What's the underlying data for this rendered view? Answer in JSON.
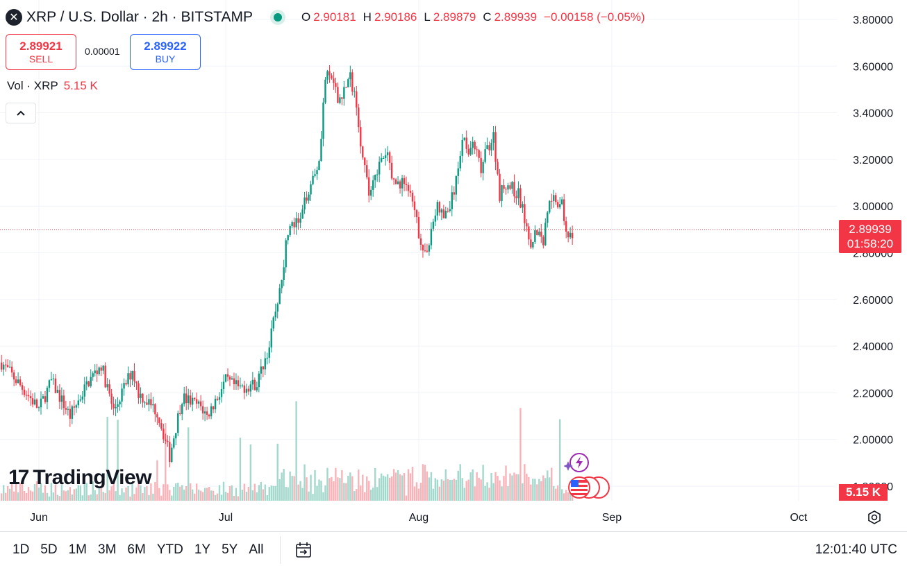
{
  "header": {
    "title": "XRP / U.S. Dollar · 2h · BITSTAMP",
    "ohlc": [
      {
        "label": "O",
        "value": "2.90181"
      },
      {
        "label": "H",
        "value": "2.90186"
      },
      {
        "label": "L",
        "value": "2.89879"
      },
      {
        "label": "C",
        "value": "2.89939"
      }
    ],
    "change": "−0.00158 (−0.05%)"
  },
  "trade": {
    "sell_price": "2.89921",
    "sell_label": "SELL",
    "spread": "0.00001",
    "buy_price": "2.89922",
    "buy_label": "BUY"
  },
  "volume": {
    "label": "Vol · XRP",
    "value": "5.15 K"
  },
  "collapse_glyph": "^",
  "brand": {
    "name": "TradingView",
    "mark": "17"
  },
  "price_tag": {
    "price": "2.89939",
    "countdown": "01:58:20"
  },
  "volume_tag": "5.15 K",
  "bottom_bar": {
    "ranges": [
      "1D",
      "5D",
      "1M",
      "3M",
      "6M",
      "YTD",
      "1Y",
      "5Y",
      "All"
    ],
    "clock": "12:01:40 UTC"
  },
  "colors": {
    "up": "#089981",
    "down": "#f23645",
    "up_vol": "#a3d8cc",
    "down_vol": "#f9b3b8",
    "grid": "#f0f3fa"
  },
  "icons": [
    "xrp-logo",
    "live-dot",
    "chevron-up-icon",
    "calendar-range-icon",
    "gear-icon",
    "us-flag-icon",
    "ai-lightning-icon"
  ],
  "chart_data": {
    "type": "candlestick",
    "title": "XRP / U.S. Dollar · 2h · BITSTAMP",
    "x_ticks": [
      "Jun",
      "Jul",
      "Aug",
      "Sep",
      "Oct"
    ],
    "y_ticks": [
      "3.80000",
      "3.60000",
      "3.40000",
      "3.20000",
      "3.00000",
      "2.80000",
      "2.60000",
      "2.40000",
      "2.20000",
      "2.00000",
      "1.80000"
    ],
    "ylim": [
      1.77,
      3.87
    ],
    "current_price": 2.89939,
    "series_anchors": [
      {
        "x": "May 26",
        "close": 2.33
      },
      {
        "x": "May 30",
        "close": 2.2
      },
      {
        "x": "Jun 1",
        "close": 2.13
      },
      {
        "x": "Jun 3",
        "close": 2.25
      },
      {
        "x": "Jun 6",
        "close": 2.1
      },
      {
        "x": "Jun 9",
        "close": 2.25
      },
      {
        "x": "Jun 11",
        "close": 2.32
      },
      {
        "x": "Jun 13",
        "close": 2.12
      },
      {
        "x": "Jun 16",
        "close": 2.3
      },
      {
        "x": "Jun 17",
        "close": 2.2
      },
      {
        "x": "Jun 20",
        "close": 2.12
      },
      {
        "x": "Jun 22",
        "close": 1.93
      },
      {
        "x": "Jun 24",
        "close": 2.18
      },
      {
        "x": "Jun 27",
        "close": 2.14
      },
      {
        "x": "Jun 28",
        "close": 2.1
      },
      {
        "x": "Jul 1",
        "close": 2.25
      },
      {
        "x": "Jul 3",
        "close": 2.22
      },
      {
        "x": "Jul 6",
        "close": 2.24
      },
      {
        "x": "Jul 8",
        "close": 2.4
      },
      {
        "x": "Jul 10",
        "close": 2.7
      },
      {
        "x": "Jul 11",
        "close": 2.9
      },
      {
        "x": "Jul 13",
        "close": 2.93
      },
      {
        "x": "Jul 14",
        "close": 3.05
      },
      {
        "x": "Jul 16",
        "close": 3.2
      },
      {
        "x": "Jul 17",
        "close": 3.55
      },
      {
        "x": "Jul 18",
        "close": 3.55
      },
      {
        "x": "Jul 19",
        "close": 3.45
      },
      {
        "x": "Jul 21",
        "close": 3.55
      },
      {
        "x": "Jul 22",
        "close": 3.45
      },
      {
        "x": "Jul 23",
        "close": 3.2
      },
      {
        "x": "Jul 24",
        "close": 3.05
      },
      {
        "x": "Jul 25",
        "close": 3.15
      },
      {
        "x": "Jul 27",
        "close": 3.22
      },
      {
        "x": "Jul 28",
        "close": 3.1
      },
      {
        "x": "Jul 30",
        "close": 3.1
      },
      {
        "x": "Jul 31",
        "close": 3.0
      },
      {
        "x": "Aug 2",
        "close": 2.78
      },
      {
        "x": "Aug 3",
        "close": 2.9
      },
      {
        "x": "Aug 4",
        "close": 3.0
      },
      {
        "x": "Aug 5",
        "close": 2.95
      },
      {
        "x": "Aug 6",
        "close": 3.0
      },
      {
        "x": "Aug 7",
        "close": 3.1
      },
      {
        "x": "Aug 8",
        "close": 3.3
      },
      {
        "x": "Aug 9",
        "close": 3.25
      },
      {
        "x": "Aug 10",
        "close": 3.25
      },
      {
        "x": "Aug 11",
        "close": 3.15
      },
      {
        "x": "Aug 12",
        "close": 3.25
      },
      {
        "x": "Aug 13",
        "close": 3.3
      },
      {
        "x": "Aug 14",
        "close": 3.05
      },
      {
        "x": "Aug 15",
        "close": 3.1
      },
      {
        "x": "Aug 17",
        "close": 3.05
      },
      {
        "x": "Aug 18",
        "close": 2.95
      },
      {
        "x": "Aug 19",
        "close": 2.85
      },
      {
        "x": "Aug 20",
        "close": 2.9
      },
      {
        "x": "Aug 21",
        "close": 2.85
      },
      {
        "x": "Aug 22",
        "close": 3.05
      },
      {
        "x": "Aug 23",
        "close": 3.03
      },
      {
        "x": "Aug 24",
        "close": 3.0
      },
      {
        "x": "Aug 25",
        "close": 2.85
      },
      {
        "x": "Aug 26",
        "close": 2.9
      }
    ]
  }
}
